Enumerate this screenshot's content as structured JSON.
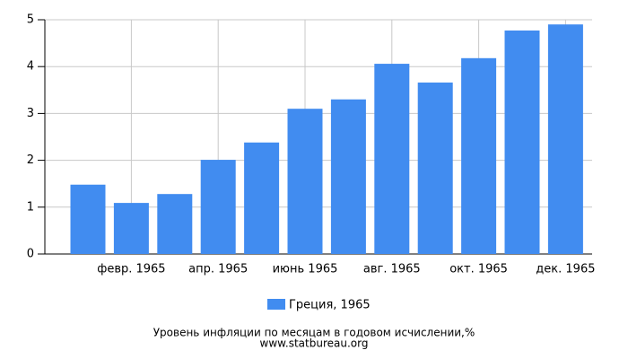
{
  "chart_data": {
    "type": "bar",
    "title": "Уровень инфляции по месяцам в годовом исчислении,%",
    "source": "www.statbureau.org",
    "categories": [
      null,
      "февр. 1965",
      null,
      "апр. 1965",
      null,
      "июнь 1965",
      null,
      "авг. 1965",
      null,
      "окт. 1965",
      null,
      "дек. 1965"
    ],
    "series": [
      {
        "name": "Греция, 1965",
        "color": "#418cf0",
        "values": [
          1.48,
          1.09,
          1.28,
          2.01,
          2.38,
          3.1,
          3.3,
          4.06,
          3.66,
          4.18,
          4.77,
          4.9
        ]
      }
    ],
    "ylim": [
      0,
      5
    ],
    "yticks": [
      0,
      1,
      2,
      3,
      4,
      5
    ],
    "grid": true
  }
}
